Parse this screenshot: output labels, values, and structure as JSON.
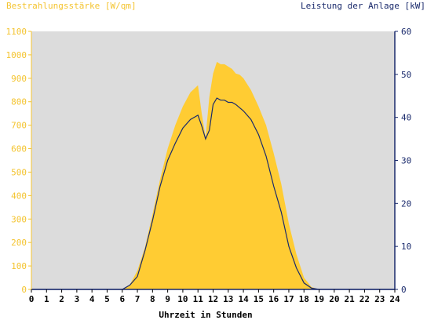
{
  "chart_data": {
    "type": "area",
    "title_left": "Bestrahlungsstärke [W/qm]",
    "title_right": "Leistung der Anlage [kW]",
    "xlabel": "Uhrzeit in Stunden",
    "x_ticks": [
      "0",
      "1",
      "2",
      "3",
      "4",
      "5",
      "6",
      "7",
      "8",
      "9",
      "10",
      "11",
      "12",
      "13",
      "14",
      "15",
      "16",
      "17",
      "18",
      "19",
      "20",
      "21",
      "22",
      "23",
      "24"
    ],
    "y_left_ticks": [
      "0",
      "100",
      "200",
      "300",
      "400",
      "500",
      "600",
      "700",
      "800",
      "900",
      "1000",
      "1100"
    ],
    "y_right_ticks": [
      "0",
      "10",
      "20",
      "30",
      "40",
      "50",
      "60"
    ],
    "xlim": [
      0,
      24
    ],
    "ylim_left": [
      0,
      1100
    ],
    "ylim_right": [
      0,
      60
    ],
    "grid": false,
    "colors": {
      "irradiance_fill": "#ffcc33",
      "power_line": "#1a2a6c",
      "plot_bg": "#dcdcdc",
      "left_axis": "#f4c430",
      "right_axis": "#1a2a6c"
    },
    "series": [
      {
        "axis": "left",
        "kind": "area",
        "x": [
          0,
          6.0,
          6.5,
          7.0,
          7.5,
          8.0,
          8.5,
          9.0,
          9.5,
          10.0,
          10.5,
          11.0,
          11.25,
          11.5,
          11.75,
          12.0,
          12.25,
          12.5,
          12.75,
          13.0,
          13.25,
          13.5,
          13.75,
          14.0,
          14.5,
          15.0,
          15.5,
          16.0,
          16.5,
          17.0,
          17.5,
          18.0,
          18.5,
          19.0,
          24
        ],
        "values": [
          0,
          0,
          20,
          80,
          180,
          320,
          470,
          600,
          700,
          780,
          840,
          870,
          750,
          650,
          820,
          920,
          970,
          960,
          960,
          950,
          940,
          920,
          915,
          900,
          850,
          780,
          700,
          580,
          450,
          280,
          150,
          50,
          10,
          0,
          0
        ]
      },
      {
        "axis": "right",
        "kind": "line",
        "x": [
          0,
          6.0,
          6.5,
          7.0,
          7.5,
          8.0,
          8.5,
          9.0,
          9.5,
          10.0,
          10.5,
          11.0,
          11.25,
          11.5,
          11.75,
          12.0,
          12.25,
          12.5,
          12.75,
          13.0,
          13.25,
          13.5,
          14.0,
          14.5,
          15.0,
          15.5,
          16.0,
          16.5,
          17.0,
          17.5,
          18.0,
          18.5,
          19.0,
          24
        ],
        "values": [
          0,
          0,
          1,
          3,
          9,
          16,
          24,
          30,
          34,
          37.5,
          39.5,
          40.5,
          38,
          35,
          37,
          43,
          44.5,
          44,
          44,
          43.5,
          43.5,
          43,
          41.5,
          39.5,
          36,
          31,
          24,
          18,
          10,
          5,
          1.5,
          0.3,
          0,
          0
        ]
      }
    ]
  }
}
